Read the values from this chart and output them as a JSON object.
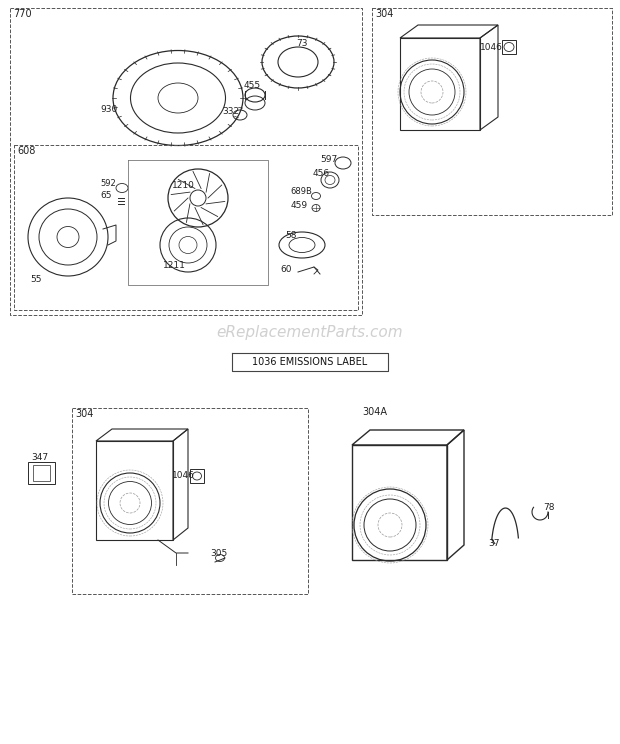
{
  "bg_color": "#ffffff",
  "lc": "#2a2a2a",
  "dc": "#999999",
  "wc": "#c8c8c8",
  "watermark": "eReplacementParts.com",
  "emissions": "1036 EMISSIONS LABEL"
}
